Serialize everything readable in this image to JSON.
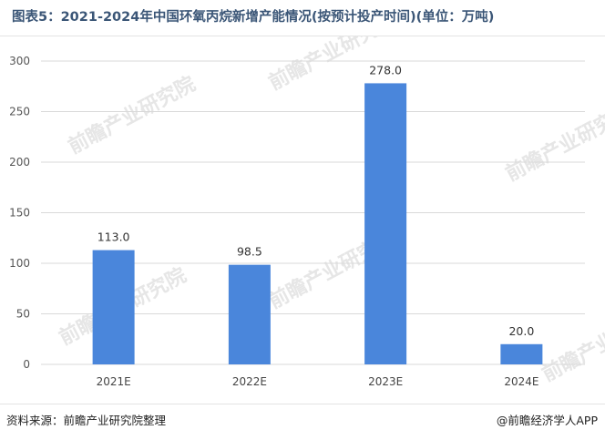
{
  "title": "图表5：2021-2024年中国环氧丙烷新增产能情况(按预计投产时间)(单位：万吨)",
  "source": "资料来源：前瞻产业研究院整理",
  "credit": "@前瞻经济学人APP",
  "watermark": "前瞻产业研究院",
  "colors": {
    "bar": "#4a86db",
    "grid": "#d9d9d9",
    "title": "#3b5677"
  },
  "chart_data": {
    "type": "bar",
    "categories": [
      "2021E",
      "2022E",
      "2023E",
      "2024E"
    ],
    "values": [
      113.0,
      98.5,
      278.0,
      20.0
    ],
    "value_labels": [
      "113.0",
      "98.5",
      "278.0",
      "20.0"
    ],
    "ylim": [
      0,
      300
    ],
    "yticks": [
      0,
      50,
      100,
      150,
      200,
      250,
      300
    ],
    "grid": true,
    "legend": "none",
    "xlabel": "",
    "ylabel": ""
  }
}
